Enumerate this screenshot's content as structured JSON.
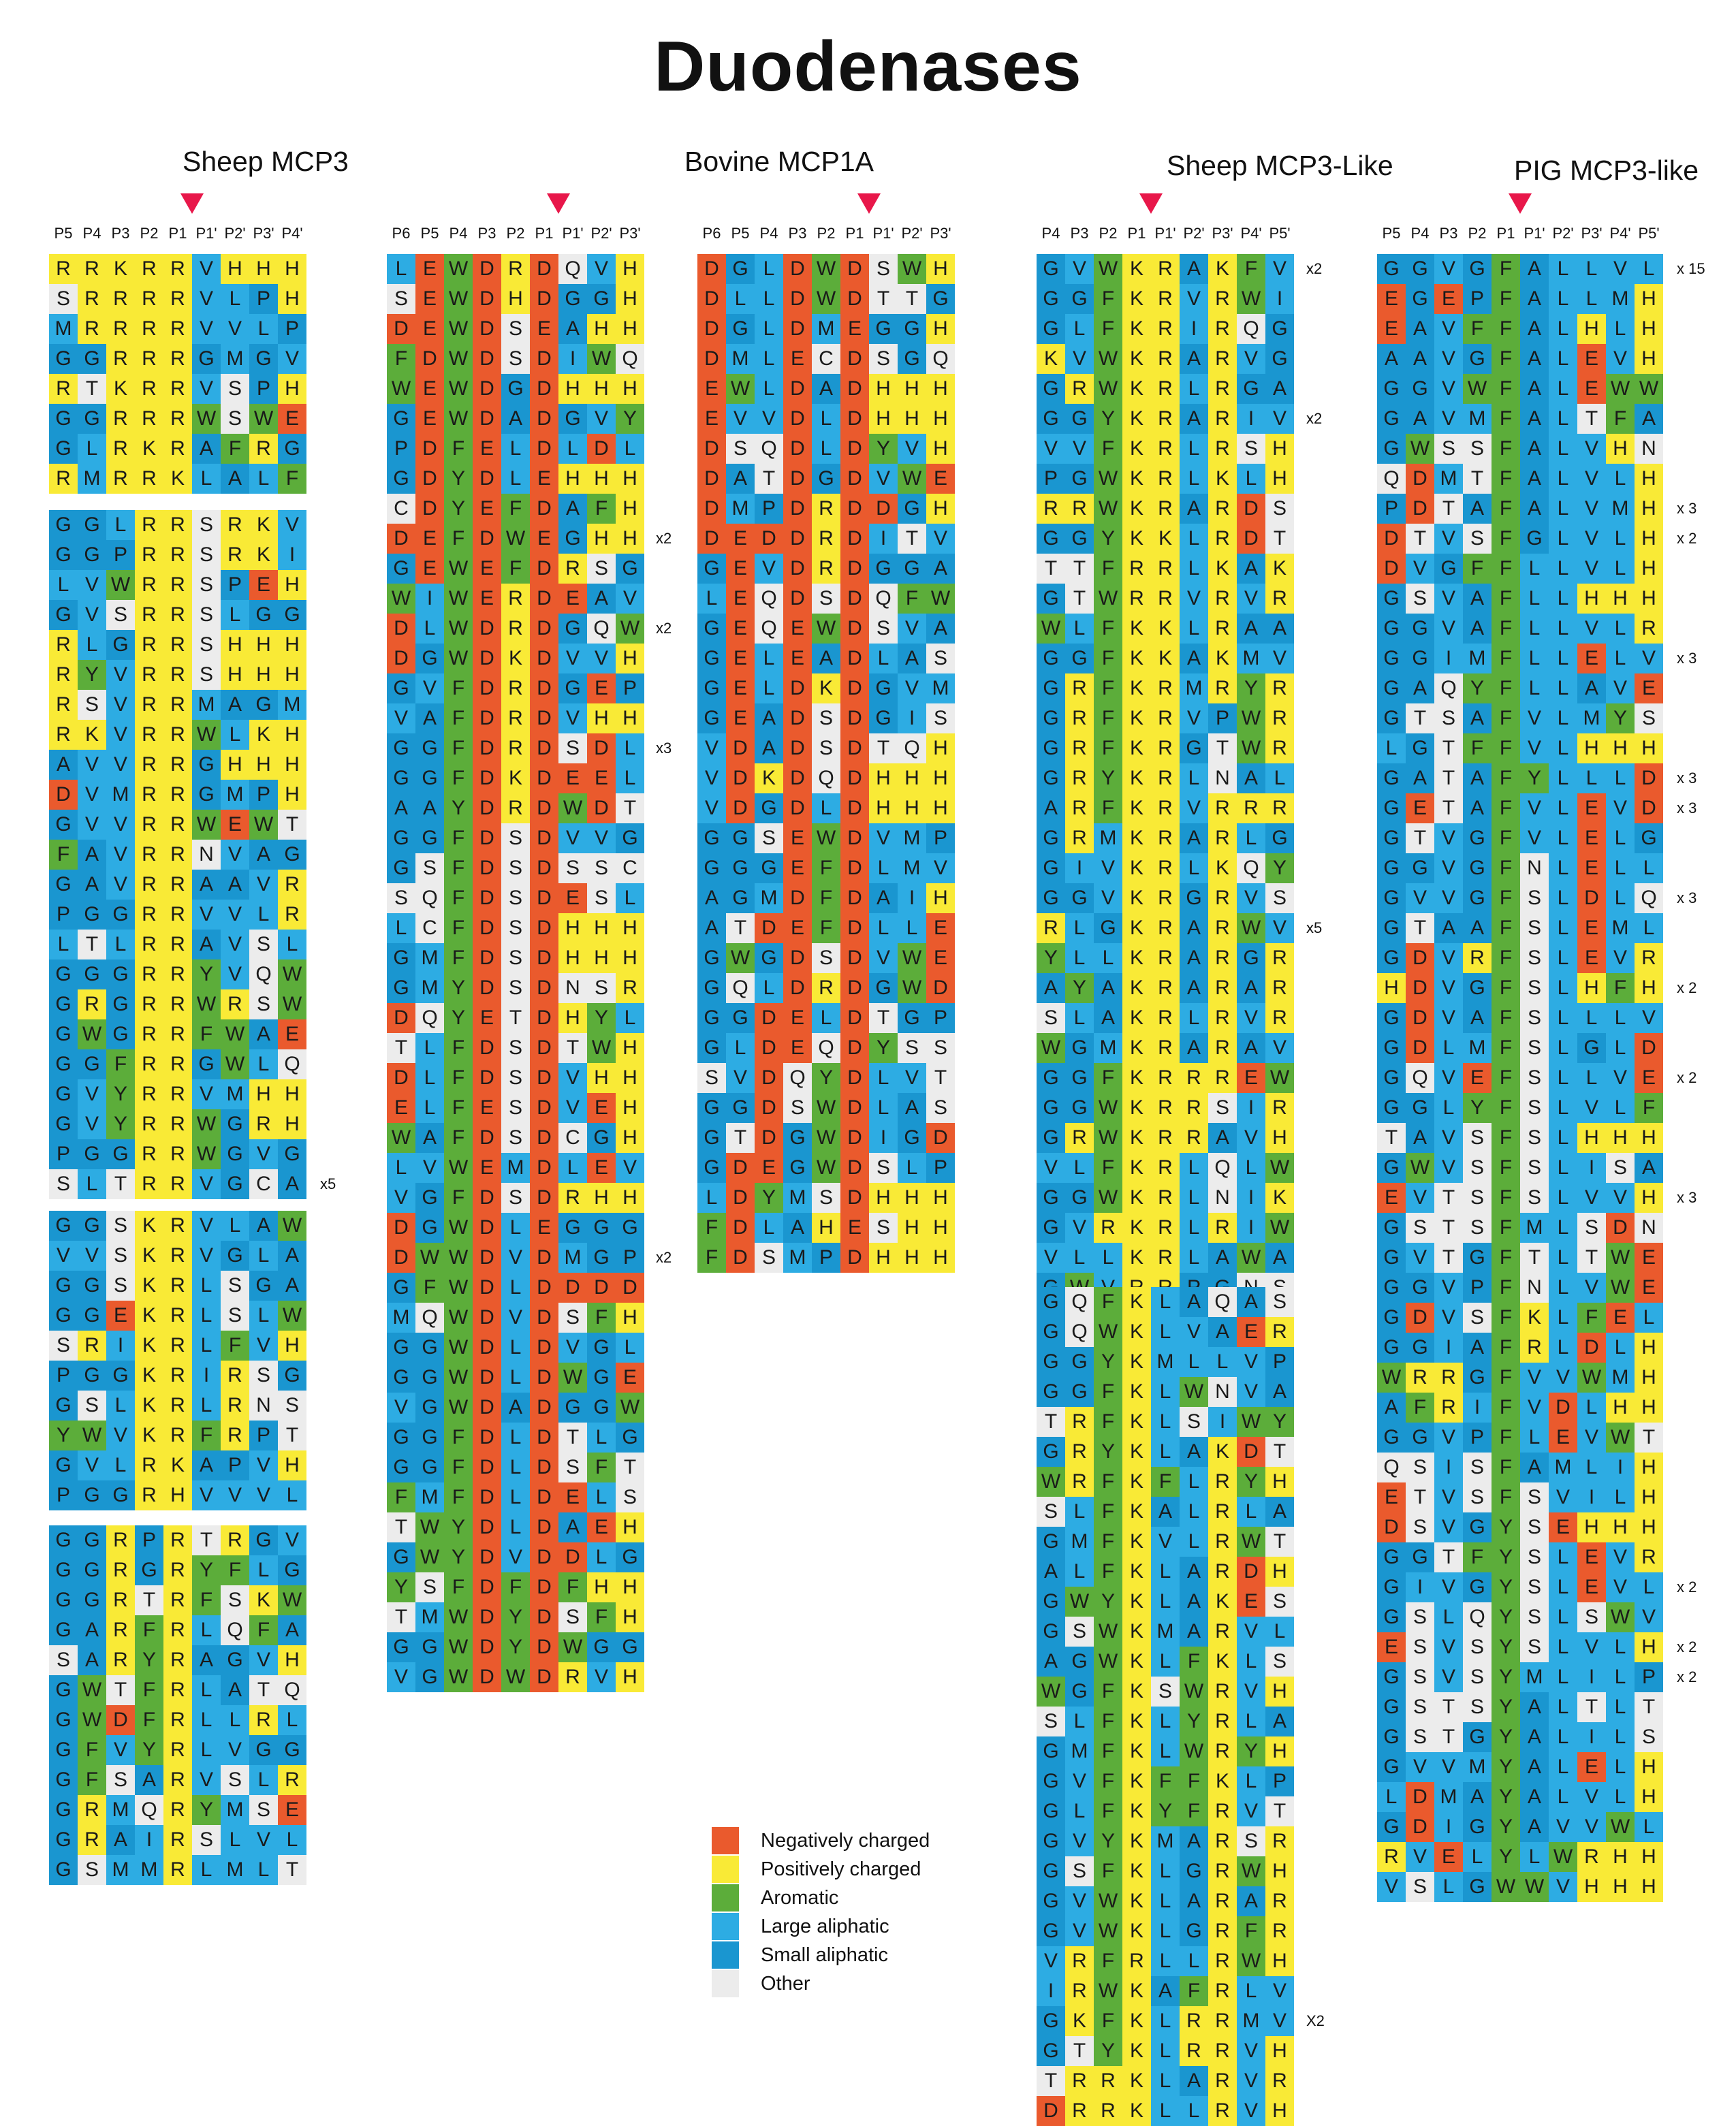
{
  "title": "Duodenases",
  "colors": {
    "N": "#ea5a2d",
    "P": "#f9ea36",
    "A": "#5cad3a",
    "L": "#2dace3",
    "S": "#1a96d0",
    "O": "#ececec"
  },
  "legend": [
    {
      "key": "N",
      "label": "Negatively charged"
    },
    {
      "key": "P",
      "label": "Positively charged"
    },
    {
      "key": "A",
      "label": "Aromatic"
    },
    {
      "key": "L",
      "label": "Large aliphatic"
    },
    {
      "key": "S",
      "label": "Small aliphatic"
    },
    {
      "key": "O",
      "label": "Other"
    }
  ],
  "panel_titles": [
    "Sheep MCP3",
    "Bovine MCP1A",
    "Sheep MCP3-Like",
    "PIG MCP3-like"
  ],
  "columns": [
    {
      "positions": [
        "P5",
        "P4",
        "P3",
        "P2",
        "P1",
        "P1'",
        "P2'",
        "P3'",
        "P4'"
      ],
      "blocks": [
        {
          "rows": [
            {
              "seq": "RRKRRVHHH"
            },
            {
              "seq": "SRRRRVLPH"
            },
            {
              "seq": "MRRRRVVLP"
            },
            {
              "seq": "GGRRRGMGV"
            },
            {
              "seq": "RTKRRVSPH"
            },
            {
              "seq": "GGRRRWSWE"
            },
            {
              "seq": "GLRKRAFRG"
            },
            {
              "seq": "RMRRKLALF"
            }
          ]
        },
        {
          "rows": [
            {
              "seq": "GGLRRSRKV"
            },
            {
              "seq": "GGPRRSRKI"
            },
            {
              "seq": "LVWRRSPEH"
            },
            {
              "seq": "GVSRRSLGG"
            },
            {
              "seq": "RLGRRSHHH"
            },
            {
              "seq": "RYVRRSHHH"
            },
            {
              "seq": "RSVRRMAGM"
            },
            {
              "seq": "RKVRRWLKH"
            },
            {
              "seq": "AVVRRGHHH"
            },
            {
              "seq": "DVMRRGMPH"
            },
            {
              "seq": "GVVRRWEWT"
            },
            {
              "seq": "FAVRRNVAG"
            },
            {
              "seq": "GAVRRAAVR"
            },
            {
              "seq": "PGGRRVVLR"
            },
            {
              "seq": "LTLRRAVSL"
            },
            {
              "seq": "GGGRRYVQW"
            },
            {
              "seq": "GRGRRWRSW"
            },
            {
              "seq": "GWGRRFWAE"
            },
            {
              "seq": "GGFRRGWLQ"
            },
            {
              "seq": "GVYRRVMHH"
            },
            {
              "seq": "GVYRRWGRH"
            },
            {
              "seq": "PGGRRWGVG"
            },
            {
              "seq": "SLTRRVGCA",
              "count": "x5"
            }
          ]
        },
        {
          "rows": [
            {
              "seq": "GGSKRVLAW"
            },
            {
              "seq": "VVSKRVGLA"
            },
            {
              "seq": "GGSKRLSGA"
            },
            {
              "seq": "GGEKRLSLW"
            },
            {
              "seq": "SRIKRLFVH"
            },
            {
              "seq": "PGGKRIRSG"
            },
            {
              "seq": "GSLKRLRNS"
            },
            {
              "seq": "YWVKRFRPT"
            },
            {
              "seq": "GVLRKAPVH"
            },
            {
              "seq": "PGGRHVVVL"
            }
          ]
        },
        {
          "rows": [
            {
              "seq": "GGRPRTRGV"
            },
            {
              "seq": "GGRGRYFLG"
            },
            {
              "seq": "GGRTRFSKW"
            },
            {
              "seq": "GARFRLQFA"
            },
            {
              "seq": "SARYRAGVH"
            },
            {
              "seq": "GWTFRLATQ"
            },
            {
              "seq": "GWDFRLLRL"
            },
            {
              "seq": "GFVYRLVGG"
            },
            {
              "seq": "GFSARVSLR"
            },
            {
              "seq": "GRMQRYMSE"
            },
            {
              "seq": "GRAIRSLVL"
            },
            {
              "seq": "GSMMRLMLT"
            }
          ]
        }
      ]
    },
    {
      "positions": [
        "P6",
        "P5",
        "P4",
        "P3",
        "P2",
        "P1",
        "P1'",
        "P2'",
        "P3'"
      ],
      "blocks": [
        {
          "rows": [
            {
              "seq": "LEWDRDQVH"
            },
            {
              "seq": "SEWDHDGGH"
            },
            {
              "seq": "DEWDSEAHH"
            },
            {
              "seq": "FDWDSDIWQ"
            },
            {
              "seq": "WEWDGDHHH"
            },
            {
              "seq": "GEWDADGVY"
            },
            {
              "seq": "PDFELDLDL"
            },
            {
              "seq": "GDYDLEHHH"
            },
            {
              "seq": "CDYEFDAFH"
            },
            {
              "seq": "DEFDWEGHH",
              "count": "x2"
            },
            {
              "seq": "GEWEFDRSG"
            },
            {
              "seq": "WIWERDEAV"
            },
            {
              "seq": "DLWDRDGQW",
              "count": "x2"
            },
            {
              "seq": "DGWDKDVVH"
            },
            {
              "seq": "GVFDRDGEP"
            },
            {
              "seq": "VAFDRDVHH"
            },
            {
              "seq": "GGFDRDSDL",
              "count": "x3"
            },
            {
              "seq": "GGFDKDEEL"
            },
            {
              "seq": "AAYDRDWDT"
            },
            {
              "seq": "GGFDSDVVG"
            },
            {
              "seq": "GSFDSDSSC"
            },
            {
              "seq": "SQFDSDESL"
            },
            {
              "seq": "LCFDSDHHH"
            },
            {
              "seq": "GMFDSDHHH"
            },
            {
              "seq": "GMYDSDNSR"
            },
            {
              "seq": "DQYETDHYL"
            },
            {
              "seq": "TLFDSDTWH"
            },
            {
              "seq": "DLFDSDVHH"
            },
            {
              "seq": "ELFESDVEH"
            },
            {
              "seq": "WAFDSDCGH"
            },
            {
              "seq": "LVWEMDLEV"
            },
            {
              "seq": "VGFDSDRHH"
            },
            {
              "seq": "DGWDLEGGG"
            },
            {
              "seq": "DWWDVDMGP",
              "count": "x2"
            },
            {
              "seq": "GFWDLDDDD"
            },
            {
              "seq": "MQWDVDSFH"
            },
            {
              "seq": "GGWDLDVGL"
            },
            {
              "seq": "GGWDLDWGE"
            },
            {
              "seq": "VGWDADGGW"
            },
            {
              "seq": "GGFDLDTLG"
            },
            {
              "seq": "GGFDLDSFT"
            },
            {
              "seq": "FMFDLDELS"
            },
            {
              "seq": "TWYDLDAEH"
            },
            {
              "seq": "GWYDVDDLG"
            },
            {
              "seq": "YSFDFDFHH"
            },
            {
              "seq": "TMWDYDSFH"
            },
            {
              "seq": "GGWDYDWGG"
            },
            {
              "seq": "VGWDWDRVH"
            }
          ]
        }
      ]
    },
    {
      "positions": [
        "P6",
        "P5",
        "P4",
        "P3",
        "P2",
        "P1",
        "P1'",
        "P2'",
        "P3'"
      ],
      "blocks": [
        {
          "rows": [
            {
              "seq": "DGLDWDSWH"
            },
            {
              "seq": "DLLDWDTTG"
            },
            {
              "seq": "DGLDMEGGH"
            },
            {
              "seq": "DMLECDSGQ"
            },
            {
              "seq": "EWLDADHHH"
            },
            {
              "seq": "EVVDLDHHH"
            },
            {
              "seq": "DSQDLDYVH"
            },
            {
              "seq": "DATDGDVWE"
            },
            {
              "seq": "DMPDRDDGH"
            },
            {
              "seq": "DEDDRDITV"
            },
            {
              "seq": "GEVDRDGGA"
            },
            {
              "seq": "LEQDSDQFW"
            },
            {
              "seq": "GEQEWDSVA"
            },
            {
              "seq": "GELEADLAS"
            },
            {
              "seq": "GELDKDGVM"
            },
            {
              "seq": "GEADSDGIS"
            },
            {
              "seq": "VDADSDTQH"
            },
            {
              "seq": "VDKDQDHHH"
            },
            {
              "seq": "VDGDLDHHH"
            },
            {
              "seq": "GGSEWDVMP"
            },
            {
              "seq": "GGGEFDLMV"
            },
            {
              "seq": "AGMDFDAIH"
            },
            {
              "seq": "ATDEFDLLE"
            },
            {
              "seq": "GWGDSDVWE"
            },
            {
              "seq": "GQLDRDGWD"
            },
            {
              "seq": "GGDELDTGP"
            },
            {
              "seq": "GLDEQDYSS"
            },
            {
              "seq": "SVDQYDLVT"
            },
            {
              "seq": "GGDSWDLAS"
            },
            {
              "seq": "GTDGWDIGD"
            },
            {
              "seq": "GDEGWDSLP"
            },
            {
              "seq": "LDYMSDHHH"
            },
            {
              "seq": "FDLAHESHH"
            },
            {
              "seq": "FDSMPDHHH"
            }
          ]
        }
      ]
    },
    {
      "positions": [
        "P4",
        "P3",
        "P2",
        "P1",
        "P1'",
        "P2'",
        "P3'",
        "P4'",
        "P5'"
      ],
      "blocks": [
        {
          "rows": [
            {
              "seq": "GVWKRAKFV",
              "count": "x2"
            },
            {
              "seq": "GGFKRVRWI"
            },
            {
              "seq": "GLFKRIRQG"
            },
            {
              "seq": "KVWKRARVG"
            },
            {
              "seq": "GRWKRLRGA"
            },
            {
              "seq": "GGYKRARIV",
              "count": "x2"
            },
            {
              "seq": "VVFKRLRSH"
            },
            {
              "seq": "PGWKRLKLH"
            },
            {
              "seq": "RRWKRARDS"
            },
            {
              "seq": "GGYKKLRDT"
            },
            {
              "seq": "TTFRRLKAK"
            },
            {
              "seq": "GTWRRVRVR"
            },
            {
              "seq": "WLFKKLRAA"
            },
            {
              "seq": "GGFKKAKMV"
            },
            {
              "seq": "GRFKRMRYR"
            },
            {
              "seq": "GRFKRVPWR"
            },
            {
              "seq": "GRFKRGTWR"
            },
            {
              "seq": "GRYKRLNAL"
            },
            {
              "seq": "ARFKRVRRR"
            },
            {
              "seq": "GRMKRARLG"
            },
            {
              "seq": "GIVKRLKQY"
            },
            {
              "seq": "GGVKRGRVS"
            },
            {
              "seq": "RLGKRARWV",
              "count": "x5"
            },
            {
              "seq": "YLLKRARGR"
            },
            {
              "seq": "AYAKRARAR"
            },
            {
              "seq": "SLAKRLRVR"
            },
            {
              "seq": "WGMKRARAV"
            },
            {
              "seq": "GGFKRRREW"
            },
            {
              "seq": "GGWKRRSIR"
            },
            {
              "seq": "GRWKRRAVH"
            },
            {
              "seq": "VLFKRLQLW"
            },
            {
              "seq": "GGWKRLNIK"
            },
            {
              "seq": "GVRKRLRIW"
            },
            {
              "seq": "VLLKRLAWA"
            },
            {
              "seq": "GWVRRPGNS"
            }
          ]
        },
        {
          "rows": [
            {
              "seq": "GQFKLAQAS"
            },
            {
              "seq": "GQWKLVAER"
            },
            {
              "seq": "GGYKMLLVP"
            },
            {
              "seq": "GGFKLWNVA"
            },
            {
              "seq": "TRFKLSIWY"
            },
            {
              "seq": "GRYKLAKDT"
            },
            {
              "seq": "WRFKFLRYH"
            },
            {
              "seq": "SLFKALRLA"
            },
            {
              "seq": "GMFKVLRWT"
            },
            {
              "seq": "ALFKLARDH"
            },
            {
              "seq": "GWYKLAKES"
            },
            {
              "seq": "GSWKMARVL"
            },
            {
              "seq": "AGWKLFKLS"
            },
            {
              "seq": "WGFKSWRVH"
            },
            {
              "seq": "SLFKLYRLA"
            },
            {
              "seq": "GMFKLWRYH"
            },
            {
              "seq": "GVFKFFKLP"
            },
            {
              "seq": "GLFKYFRVT"
            },
            {
              "seq": "GVYKMARSR"
            },
            {
              "seq": "GSFKLGRWH"
            },
            {
              "seq": "GVWKLARAR"
            },
            {
              "seq": "GVWKLGRFR"
            },
            {
              "seq": "VRFRLLRWH"
            },
            {
              "seq": "IRWKAFRLV"
            },
            {
              "seq": "GKFKLRRMV",
              "count": "X2"
            },
            {
              "seq": "GTYKLRRVH"
            },
            {
              "seq": "TRRKLARVR"
            },
            {
              "seq": "DRRKLLRVH"
            }
          ]
        }
      ]
    },
    {
      "positions": [
        "P5",
        "P4",
        "P3",
        "P2",
        "P1",
        "P1'",
        "P2'",
        "P3'",
        "P4'",
        "P5'"
      ],
      "blocks": [
        {
          "rows": [
            {
              "seq": "GGVGFALLVL",
              "count": "x 15"
            },
            {
              "seq": "EGEPFALLMH"
            },
            {
              "seq": "EAVFFALHLH"
            },
            {
              "seq": "AAVGFALEVH"
            },
            {
              "seq": "GGVWFALEWW"
            },
            {
              "seq": "GAVMFALTFA"
            },
            {
              "seq": "GWSSFALVHN"
            },
            {
              "seq": "QDMTFALVLH"
            },
            {
              "seq": "PDTAFALVMH",
              "count": "x 3"
            },
            {
              "seq": "DTVSFGLVLH",
              "count": "x 2"
            },
            {
              "seq": "DVGFFLLVLH"
            },
            {
              "seq": "GSVAFLLHHH"
            },
            {
              "seq": "GGVAFLLVLR"
            },
            {
              "seq": "GGIMFLLELV",
              "count": "x 3"
            },
            {
              "seq": "GAQYFLLAVE"
            },
            {
              "seq": "GTSAFVLMYS"
            },
            {
              "seq": "LGTFFVLHHH"
            },
            {
              "seq": "GATAFYLLLD",
              "count": "x 3"
            },
            {
              "seq": "GETAFVLEVD",
              "count": "x 3"
            },
            {
              "seq": "GTVGFVLELG"
            },
            {
              "seq": "GGVGFNLELL"
            },
            {
              "seq": "GVVGFSLDLQ",
              "count": "x 3"
            },
            {
              "seq": "GTAAFSLEML"
            },
            {
              "seq": "GDVRFSLEVR"
            },
            {
              "seq": "HDVGFSLHFH",
              "count": "x 2"
            },
            {
              "seq": "GDVAFSLLLV"
            },
            {
              "seq": "GDLMFSLGLD"
            },
            {
              "seq": "GQVEFSLLVE",
              "count": "x 2"
            },
            {
              "seq": "GGLYFSLVLF"
            },
            {
              "seq": "TAVSFSLHHH"
            },
            {
              "seq": "GWVSFSLISA"
            },
            {
              "seq": "EVTSFSLVVH",
              "count": "x 3"
            },
            {
              "seq": "GSTSFMLSDN"
            },
            {
              "seq": "GVTGFTLTWE"
            },
            {
              "seq": "GGVPFNLVWE"
            },
            {
              "seq": "GDVSFKLFEL"
            },
            {
              "seq": "GGIAFRLDLH"
            },
            {
              "seq": "WRRGFVVWMH"
            },
            {
              "seq": "AFRIFVDLHH"
            },
            {
              "seq": "GGVPFLEVWT"
            },
            {
              "seq": "QSISFAMLIH"
            },
            {
              "seq": "ETVSFSVILH"
            },
            {
              "seq": "DSVGYSEHHH"
            },
            {
              "seq": "GGTFYSLEVR"
            },
            {
              "seq": "GIVGYSLEVL",
              "count": "x 2"
            },
            {
              "seq": "GSLQYSLSWV"
            },
            {
              "seq": "ESVSYSLVLH",
              "count": "x 2"
            },
            {
              "seq": "GSVSYMLILP",
              "count": "x 2"
            },
            {
              "seq": "GSTSYALTLT"
            },
            {
              "seq": "GSTGYALILS"
            },
            {
              "seq": "GVVMYALELH"
            },
            {
              "seq": "LDMAYALVLH"
            },
            {
              "seq": "GDIGYAVVWL"
            },
            {
              "seq": "RVELYLWRHH"
            },
            {
              "seq": "VSLGWWVHHH"
            }
          ]
        }
      ]
    }
  ]
}
